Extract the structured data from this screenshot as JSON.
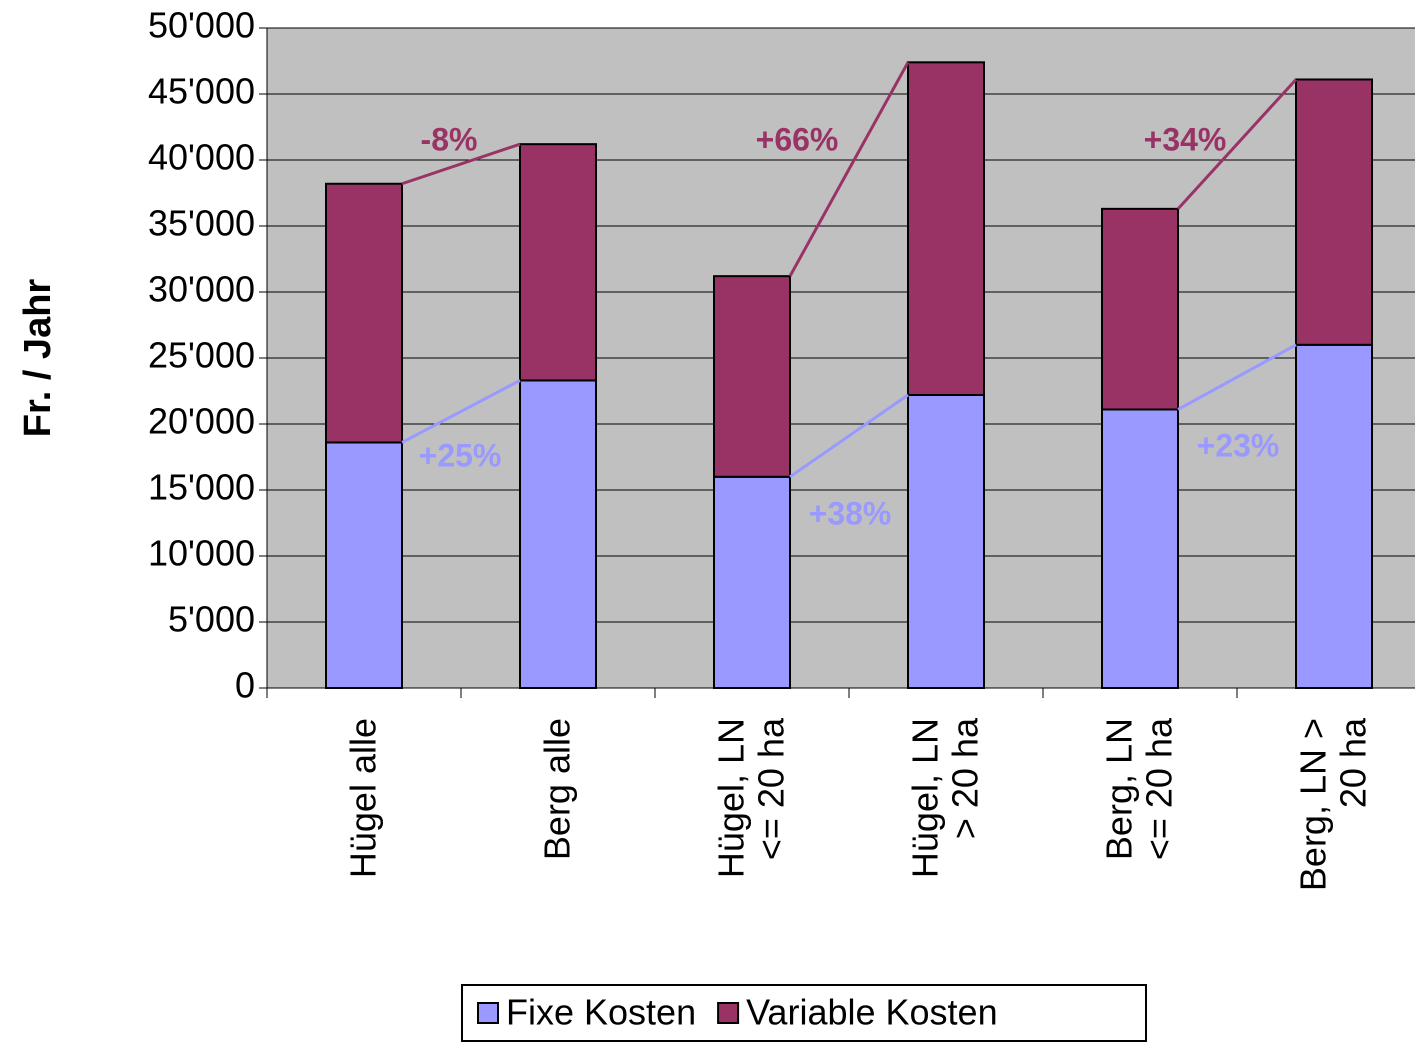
{
  "chart_data": {
    "type": "stacked_bar",
    "y_label": "Fr. / Jahr",
    "categories": [
      [
        "Hügel alle"
      ],
      [
        "Berg alle"
      ],
      [
        "Hügel, LN",
        "<= 20 ha"
      ],
      [
        "Hügel, LN",
        "> 20 ha"
      ],
      [
        "Berg, LN",
        "<= 20 ha"
      ],
      [
        "Berg, LN >",
        "20 ha"
      ]
    ],
    "series": [
      {
        "name": "Fixe Kosten",
        "color": "#9999ff",
        "values": [
          18600,
          23300,
          16000,
          22200,
          21100,
          26000
        ]
      },
      {
        "name": "Variable Kosten",
        "color": "#993366",
        "values": [
          19600,
          17900,
          15200,
          25200,
          15200,
          20100
        ]
      }
    ],
    "annotations": [
      "-8%",
      "+66%",
      "+34%",
      "+25%",
      "+38%",
      "+23%"
    ],
    "ylim": [
      0,
      50000
    ],
    "yticks": [
      {
        "value": 0,
        "label": "0"
      },
      {
        "value": 5000,
        "label": "5'000"
      },
      {
        "value": 10000,
        "label": "10'000"
      },
      {
        "value": 15000,
        "label": "15'000"
      },
      {
        "value": 20000,
        "label": "20'000"
      },
      {
        "value": 25000,
        "label": "25'000"
      },
      {
        "value": 30000,
        "label": "30'000"
      },
      {
        "value": 35000,
        "label": "35'000"
      },
      {
        "value": 40000,
        "label": "40'000"
      },
      {
        "value": 45000,
        "label": "45'000"
      },
      {
        "value": 50000,
        "label": "50'000"
      }
    ],
    "grid": true,
    "legend": "bottom",
    "background": "#c0c0c0"
  }
}
